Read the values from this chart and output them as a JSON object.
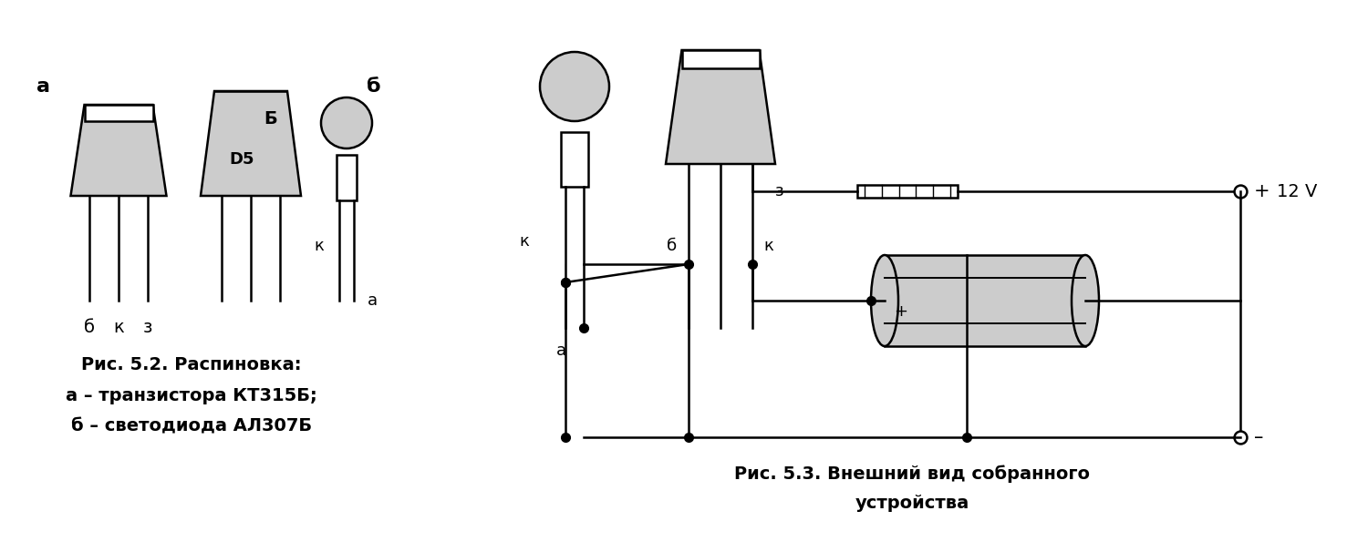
{
  "bg_color": "#ffffff",
  "line_color": "#000000",
  "fill_color": "#cccccc",
  "text_color": "#000000",
  "caption1_line1": "Рис. 5.2. Распиновка:",
  "caption1_line2": "а – транзистора КТ315Б;",
  "caption1_line3": "б – светодиода АЛ307Б",
  "caption2_line1": "Рис. 5.3. Внешний вид собранного",
  "caption2_line2": "устройства",
  "fig_width": 15.0,
  "fig_height": 6.06,
  "dpi": 100
}
